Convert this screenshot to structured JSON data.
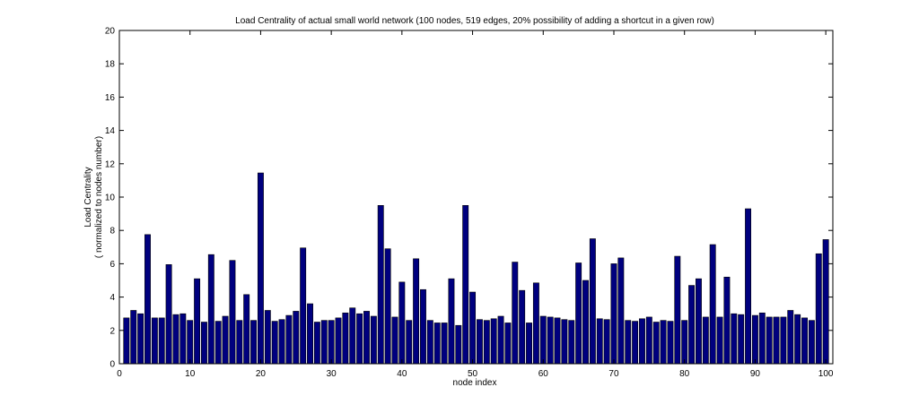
{
  "chart_data": {
    "type": "bar",
    "title": "Load Centrality of actual small world network (100 nodes, 519 edges, 20% possibility of adding a shortcut in a given row)",
    "xlabel": "node index",
    "ylabel_line1": "Load Centrality",
    "ylabel_line2": "( normalized to nodes number)",
    "xlim": [
      0,
      101
    ],
    "ylim": [
      0,
      20
    ],
    "xticks": [
      0,
      10,
      20,
      30,
      40,
      50,
      60,
      70,
      80,
      90,
      100
    ],
    "yticks": [
      0,
      2,
      4,
      6,
      8,
      10,
      12,
      14,
      16,
      18,
      20
    ],
    "grid": false,
    "bar_color": "#00007f",
    "x": [
      1,
      2,
      3,
      4,
      5,
      6,
      7,
      8,
      9,
      10,
      11,
      12,
      13,
      14,
      15,
      16,
      17,
      18,
      19,
      20,
      21,
      22,
      23,
      24,
      25,
      26,
      27,
      28,
      29,
      30,
      31,
      32,
      33,
      34,
      35,
      36,
      37,
      38,
      39,
      40,
      41,
      42,
      43,
      44,
      45,
      46,
      47,
      48,
      49,
      50,
      51,
      52,
      53,
      54,
      55,
      56,
      57,
      58,
      59,
      60,
      61,
      62,
      63,
      64,
      65,
      66,
      67,
      68,
      69,
      70,
      71,
      72,
      73,
      74,
      75,
      76,
      77,
      78,
      79,
      80,
      81,
      82,
      83,
      84,
      85,
      86,
      87,
      88,
      89,
      90,
      91,
      92,
      93,
      94,
      95,
      96,
      97,
      98,
      99,
      100
    ],
    "values": [
      2.75,
      3.2,
      3.0,
      7.75,
      2.75,
      2.75,
      5.95,
      2.95,
      3.0,
      2.6,
      5.1,
      2.5,
      6.55,
      2.55,
      2.85,
      6.2,
      2.6,
      4.15,
      2.6,
      11.45,
      3.2,
      2.55,
      2.65,
      2.9,
      3.15,
      6.95,
      3.6,
      2.5,
      2.6,
      2.6,
      2.75,
      3.05,
      3.35,
      3.0,
      3.15,
      2.85,
      9.5,
      6.9,
      2.8,
      4.9,
      2.6,
      6.3,
      4.45,
      2.6,
      2.45,
      2.45,
      5.1,
      2.3,
      9.5,
      4.3,
      2.65,
      2.6,
      2.7,
      2.85,
      2.45,
      6.1,
      4.4,
      2.45,
      4.85,
      2.85,
      2.8,
      2.75,
      2.65,
      2.6,
      6.05,
      5.0,
      7.5,
      2.7,
      2.65,
      6.0,
      6.35,
      2.6,
      2.55,
      2.7,
      2.8,
      2.5,
      2.6,
      2.55,
      6.45,
      2.6,
      4.7,
      5.1,
      2.8,
      7.15,
      2.8,
      5.2,
      3.0,
      2.95,
      9.3,
      2.9,
      3.05,
      2.8,
      2.8,
      2.8,
      3.2,
      2.95,
      2.75,
      2.6,
      6.6,
      7.45
    ]
  }
}
